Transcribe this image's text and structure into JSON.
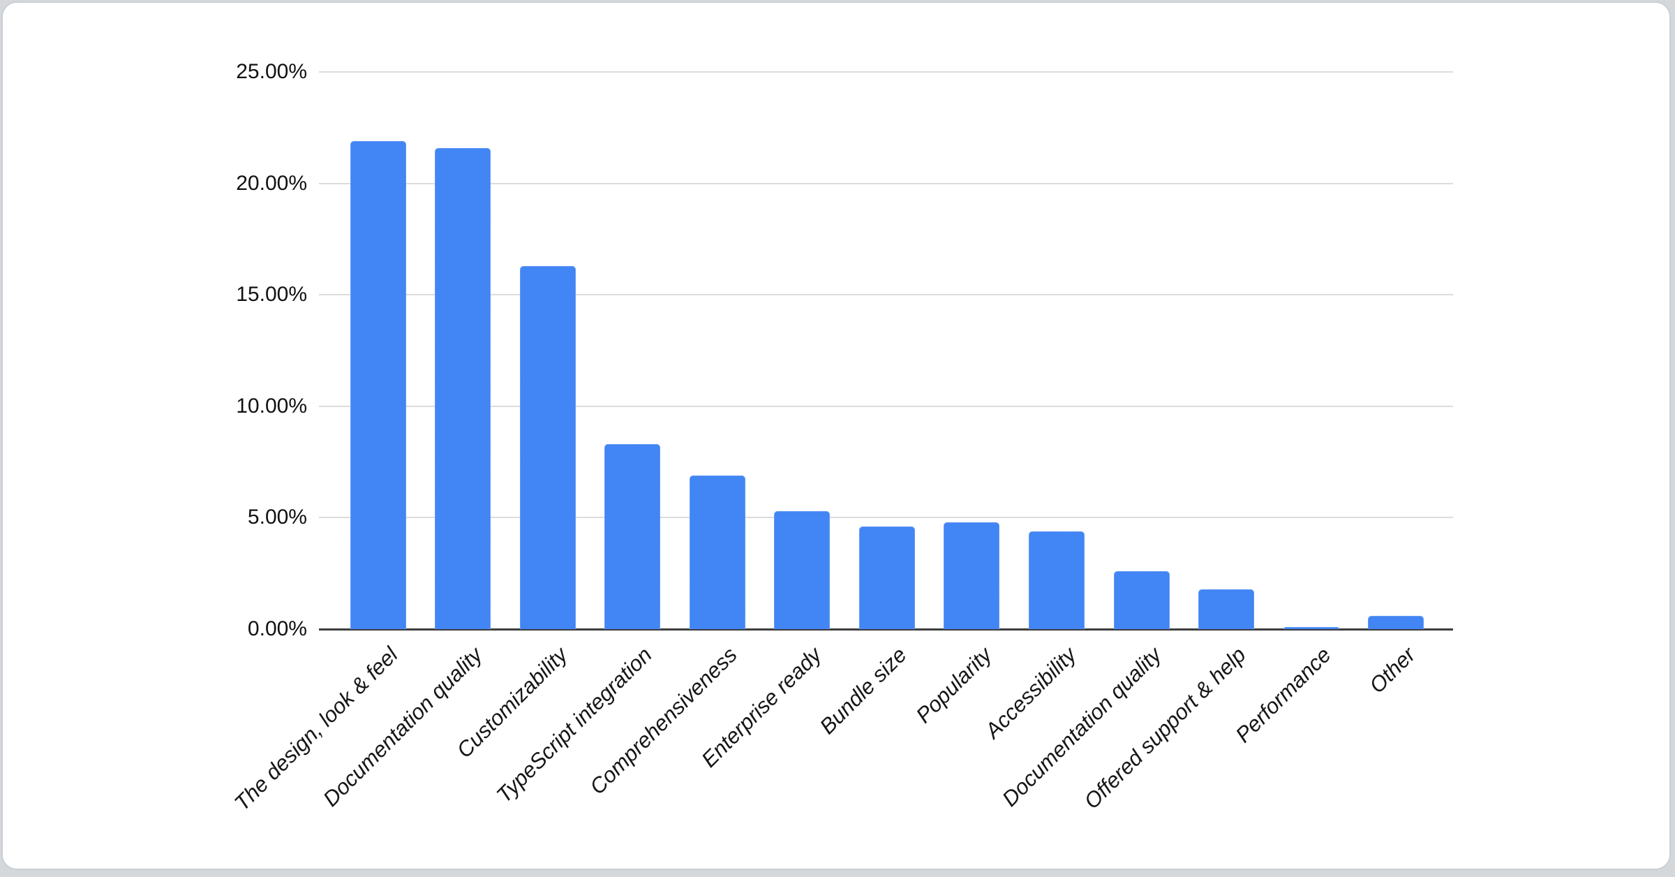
{
  "page": {
    "background_color": "#d5d8db",
    "card_background": "#ffffff",
    "card_border_color": "#cbcfd3"
  },
  "chart_data": {
    "type": "bar",
    "title": "",
    "xlabel": "",
    "ylabel": "",
    "unit": "%",
    "categories": [
      "The design, look & feel",
      "Documentation quality",
      "Customizability",
      "TypeScript integration",
      "Comprehensiveness",
      "Enterprise ready",
      "Bundle size",
      "Popularity",
      "Accessibility",
      "Documentation quality",
      "Offered support & help",
      "Performance",
      "Other"
    ],
    "values": [
      21.9,
      21.6,
      16.3,
      8.3,
      6.9,
      5.3,
      4.6,
      4.8,
      4.4,
      2.6,
      1.8,
      0.1,
      0.6
    ],
    "ylim": [
      0,
      25
    ],
    "y_tick_step": 5,
    "y_tick_labels": [
      "0.00%",
      "5.00%",
      "10.00%",
      "15.00%",
      "20.00%",
      "25.00%"
    ],
    "grid": true,
    "legend_position": "none",
    "bar_color": "#4285f4",
    "gridline_color": "#dcdcdc",
    "baseline_color": "#3d3d3d"
  }
}
